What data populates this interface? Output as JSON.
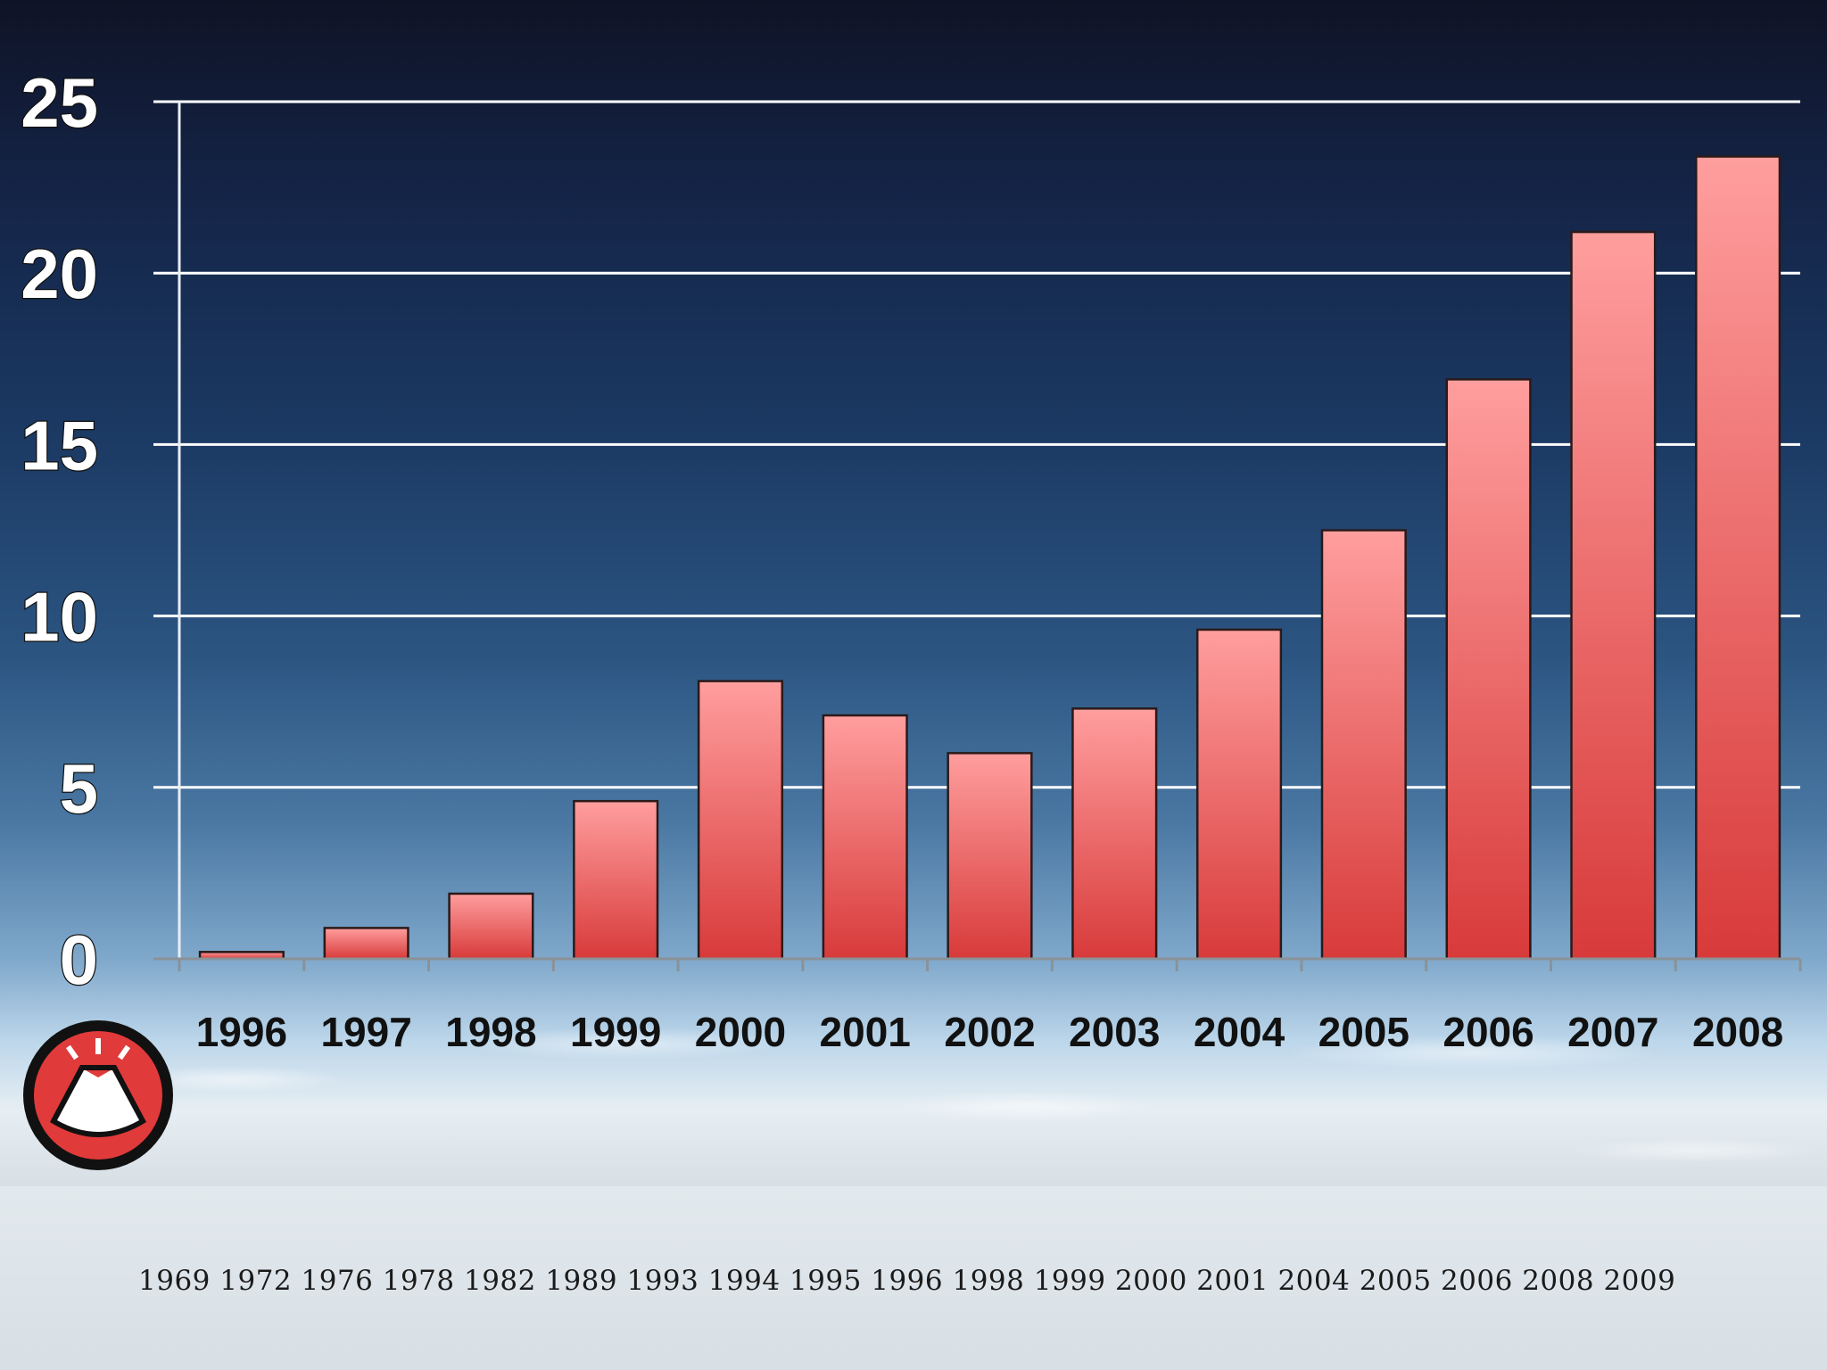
{
  "chart_data": {
    "type": "bar",
    "categories": [
      "1996",
      "1997",
      "1998",
      "1999",
      "2000",
      "2001",
      "2002",
      "2003",
      "2004",
      "2005",
      "2006",
      "2007",
      "2008"
    ],
    "values": [
      0.2,
      0.9,
      1.9,
      4.6,
      8.1,
      7.1,
      6.0,
      7.3,
      9.6,
      12.5,
      16.9,
      21.2,
      23.4
    ],
    "yticks": [
      "0",
      "5",
      "10",
      "15",
      "20",
      "25"
    ],
    "ylim": [
      0,
      25
    ],
    "title": "",
    "xlabel": "",
    "ylabel": "",
    "grid": true,
    "bar_color_top": "#ff9e9e",
    "bar_color_bottom": "#d83a3a"
  },
  "caption": "1969 1972 1976 1978 1982 1989 1993 1994 1995 1996 1998 1999 2000 2001 2004 2005 2006 2008 2009",
  "logo": {
    "icon": "volcano-logo-icon",
    "color": "#e03a3a"
  }
}
